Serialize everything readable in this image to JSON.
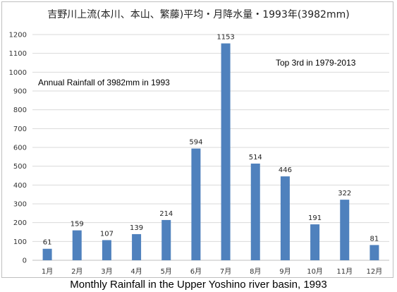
{
  "chart_data": {
    "type": "bar",
    "title": "吉野川上流(本川、本山、繁藤)平均・月降水量・1993年(3982mm)",
    "caption": "Monthly Rainfall in the Upper Yoshino river basin, 1993",
    "annotations": {
      "annual": "Annual Rainfall of 3982mm in 1993",
      "rank": "Top 3rd in 1979-2013"
    },
    "categories": [
      "1月",
      "2月",
      "3月",
      "4月",
      "5月",
      "6月",
      "7月",
      "8月",
      "9月",
      "10月",
      "11月",
      "12月"
    ],
    "values": [
      61,
      159,
      107,
      139,
      214,
      594,
      1153,
      514,
      446,
      191,
      322,
      81
    ],
    "ylim": [
      0,
      1200
    ],
    "yticks": [
      0,
      100,
      200,
      300,
      400,
      500,
      600,
      700,
      800,
      900,
      1000,
      1100,
      1200
    ],
    "grid": true,
    "bar_color": "#4f81bd",
    "grid_color": "#d9d9d9"
  }
}
